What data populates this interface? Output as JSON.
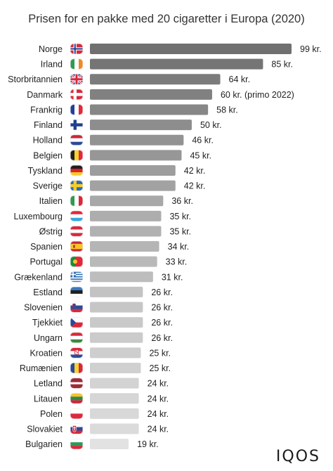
{
  "chart_data": {
    "type": "bar",
    "orientation": "horizontal",
    "title": "Prisen for en pakke med 20 cigaretter i Europa (2020)",
    "xlabel": "",
    "ylabel": "",
    "xlim": [
      0,
      99
    ],
    "grid": false,
    "categories": [
      "Norge",
      "Irland",
      "Storbritannien",
      "Danmark",
      "Frankrig",
      "Finland",
      "Holland",
      "Belgien",
      "Tyskland",
      "Sverige",
      "Italien",
      "Luxembourg",
      "Østrig",
      "Spanien",
      "Portugal",
      "Grækenland",
      "Estland",
      "Slovenien",
      "Tjekkiet",
      "Ungarn",
      "Kroatien",
      "Rumænien",
      "Letland",
      "Litauen",
      "Polen",
      "Slovakiet",
      "Bulgarien"
    ],
    "values": [
      99,
      85,
      64,
      60,
      58,
      50,
      46,
      45,
      42,
      42,
      36,
      35,
      35,
      34,
      33,
      31,
      26,
      26,
      26,
      26,
      25,
      25,
      24,
      24,
      24,
      24,
      19
    ],
    "value_labels": [
      "99 kr.",
      "85 kr.",
      "64 kr.",
      "60 kr. (primo 2022)",
      "58 kr.",
      "50 kr.",
      "46 kr.",
      "45 kr.",
      "42 kr.",
      "42 kr.",
      "36 kr.",
      "35 kr.",
      "35 kr.",
      "34 kr.",
      "33 kr.",
      "31 kr.",
      "26 kr.",
      "26 kr.",
      "26 kr.",
      "26 kr.",
      "25 kr.",
      "25 kr.",
      "24 kr.",
      "24 kr.",
      "24 kr.",
      "24 kr.",
      "19 kr."
    ],
    "bar_colors": [
      "#707070",
      "#757575",
      "#7c7c7c",
      "#818181",
      "#878787",
      "#8d8d8d",
      "#939393",
      "#979797",
      "#9d9d9d",
      "#a2a2a2",
      "#a8a8a8",
      "#adadad",
      "#b1b1b1",
      "#b5b5b5",
      "#b9b9b9",
      "#bdbdbd",
      "#c3c3c3",
      "#c6c6c6",
      "#c9c9c9",
      "#cbcbcb",
      "#cecece",
      "#d0d0d0",
      "#d3d3d3",
      "#d6d6d6",
      "#d8d8d8",
      "#dbdbdb",
      "#e2e2e2"
    ]
  },
  "flags": [
    "norway-flag-icon",
    "ireland-flag-icon",
    "uk-flag-icon",
    "denmark-flag-icon",
    "france-flag-icon",
    "finland-flag-icon",
    "netherlands-flag-icon",
    "belgium-flag-icon",
    "germany-flag-icon",
    "sweden-flag-icon",
    "italy-flag-icon",
    "luxembourg-flag-icon",
    "austria-flag-icon",
    "spain-flag-icon",
    "portugal-flag-icon",
    "greece-flag-icon",
    "estonia-flag-icon",
    "slovenia-flag-icon",
    "czech-flag-icon",
    "hungary-flag-icon",
    "croatia-flag-icon",
    "romania-flag-icon",
    "latvia-flag-icon",
    "lithuania-flag-icon",
    "poland-flag-icon",
    "slovakia-flag-icon",
    "bulgaria-flag-icon"
  ],
  "brand": "IQOS"
}
